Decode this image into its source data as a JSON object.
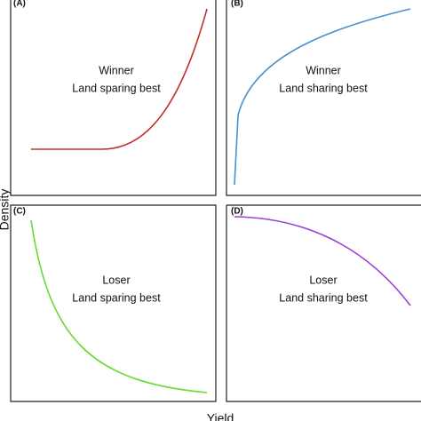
{
  "panels": [
    {
      "label": "(A)",
      "lines": [
        "Winner",
        "Land sparing best"
      ]
    },
    {
      "label": "(B)",
      "lines": [
        "Winner",
        "Land sharing best"
      ]
    },
    {
      "label": "(C)",
      "lines": [
        "Loser",
        "Land sparing best"
      ]
    },
    {
      "label": "(D)",
      "lines": [
        "Loser",
        "Land sharing best"
      ]
    }
  ],
  "y_axis_label": "Density",
  "x_axis_label": "Yield"
}
